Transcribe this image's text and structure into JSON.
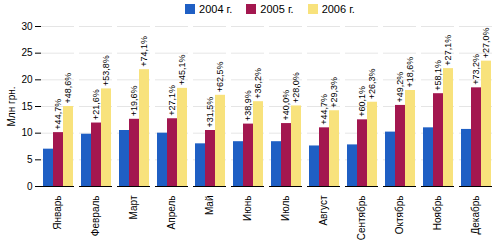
{
  "chart_data": {
    "type": "bar",
    "y_label": "Млн грн.",
    "categories": [
      "Январь",
      "Февраль",
      "Март",
      "Апрель",
      "Май",
      "Июнь",
      "Июль",
      "Август",
      "Сентябрь",
      "Октябрь",
      "Ноябрь",
      "Декабрь"
    ],
    "series": [
      {
        "name": "2004 г.",
        "color": "#1f5fc4",
        "values": [
          7.0,
          9.8,
          10.5,
          10.0,
          8.0,
          8.4,
          8.4,
          7.6,
          7.8,
          10.2,
          11.0,
          10.7
        ]
      },
      {
        "name": "2005 г.",
        "color": "#a3174f",
        "values": [
          10.1,
          11.9,
          12.6,
          12.7,
          10.5,
          11.7,
          11.8,
          11.0,
          12.5,
          15.2,
          17.4,
          18.5
        ],
        "annotations": [
          "+44,7%",
          "+21,6%",
          "+19,6%",
          "+27,1%",
          "+31,5%",
          "+38,9%",
          "+40,0%",
          "+44,7%",
          "+60,1%",
          "+49,2%",
          "+58,1%",
          "+73,2%"
        ]
      },
      {
        "name": "2006 г.",
        "color": "#f8e27c",
        "values": [
          15.0,
          18.3,
          21.9,
          18.4,
          17.1,
          15.9,
          15.1,
          14.2,
          15.8,
          18.0,
          22.1,
          23.5
        ],
        "annotations": [
          "+48,6%",
          "+53,8%",
          "+74,1%",
          "+45,1%",
          "+62,5%",
          "+36,2%",
          "+28,0%",
          "+29,3%",
          "+26,3%",
          "+18,6%",
          "+27,1%",
          "+27,0%"
        ]
      }
    ],
    "ylim": [
      0,
      30
    ],
    "yticks": [
      0,
      5,
      10,
      15,
      20,
      25,
      30
    ],
    "grid": true,
    "legend": "top"
  }
}
